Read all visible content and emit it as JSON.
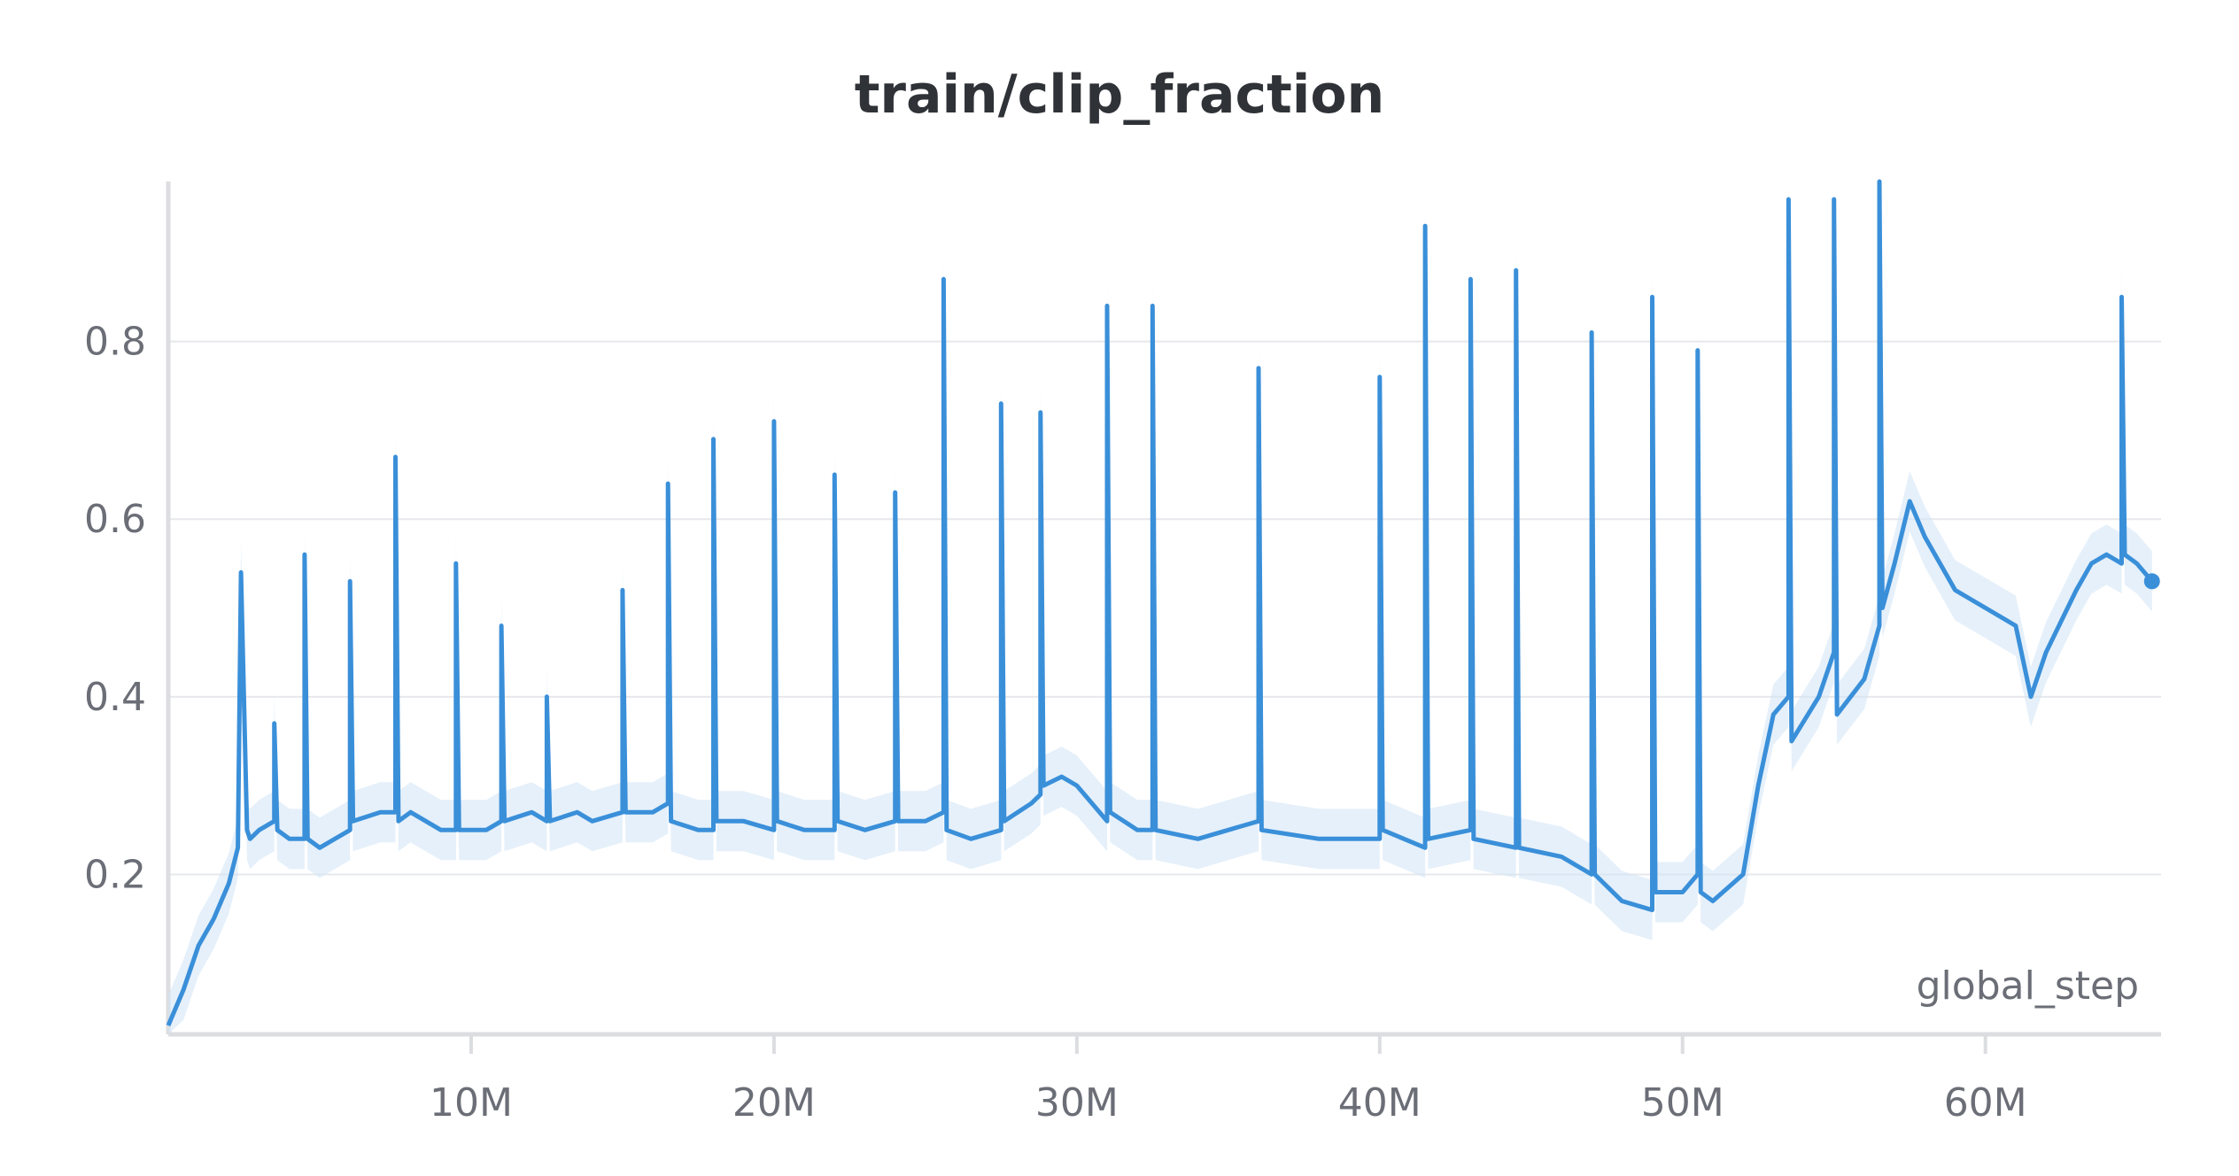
{
  "chart_data": {
    "type": "line",
    "title": "train/clip_fraction",
    "xlabel": "global_step",
    "ylabel": "",
    "xlim": [
      0,
      65800000
    ],
    "ylim": [
      0.02,
      0.98
    ],
    "x_ticks": [
      {
        "value": 10000000,
        "label": "10M"
      },
      {
        "value": 20000000,
        "label": "20M"
      },
      {
        "value": 30000000,
        "label": "30M"
      },
      {
        "value": 40000000,
        "label": "40M"
      },
      {
        "value": 50000000,
        "label": "50M"
      },
      {
        "value": 60000000,
        "label": "60M"
      }
    ],
    "y_ticks": [
      {
        "value": 0.2,
        "label": "0.2"
      },
      {
        "value": 0.4,
        "label": "0.4"
      },
      {
        "value": 0.6,
        "label": "0.6"
      },
      {
        "value": 0.8,
        "label": "0.8"
      }
    ],
    "grid": true,
    "legend": "none",
    "colors": {
      "line": "#3a8fd9",
      "band": "#cfe3f5",
      "grid": "#e6e8ec",
      "axis": "#dcdde0"
    },
    "series": [
      {
        "x": [
          0,
          500000,
          1000000,
          1500000,
          2000000,
          2300000,
          2400000,
          2600000,
          2700000,
          3000000,
          3500000,
          3500000,
          3600000,
          4000000,
          4500000,
          4500000,
          4600000,
          5000000,
          6000000,
          6000000,
          6100000,
          7000000,
          7500000,
          7500000,
          7600000,
          8000000,
          9000000,
          9500000,
          9500000,
          9600000,
          10500000,
          11000000,
          11000000,
          11100000,
          12000000,
          12500000,
          12500000,
          12600000,
          13500000,
          14000000,
          15000000,
          15000000,
          15100000,
          16000000,
          16500000,
          16500000,
          16600000,
          17500000,
          18000000,
          18000000,
          18100000,
          19000000,
          20000000,
          20000000,
          20100000,
          21000000,
          22000000,
          22000000,
          22100000,
          23000000,
          24000000,
          24000000,
          24100000,
          25000000,
          25600000,
          25600000,
          25700000,
          26500000,
          27500000,
          27500000,
          27600000,
          28500000,
          28800000,
          28800000,
          28900000,
          29500000,
          30000000,
          31000000,
          31000000,
          31100000,
          32000000,
          32500000,
          32500000,
          32600000,
          34000000,
          36000000,
          36000000,
          36100000,
          38000000,
          40000000,
          40000000,
          40100000,
          41500000,
          41500000,
          41600000,
          43000000,
          43000000,
          43100000,
          44500000,
          44500000,
          44600000,
          46000000,
          47000000,
          47000000,
          47100000,
          48000000,
          49000000,
          49000000,
          49100000,
          50000000,
          50500000,
          50500000,
          50600000,
          51000000,
          52000000,
          52500000,
          53000000,
          53500000,
          53500000,
          53600000,
          54500000,
          55000000,
          55000000,
          55100000,
          56000000,
          56500000,
          56500000,
          56600000,
          57000000,
          57500000,
          58000000,
          58500000,
          59000000,
          60000000,
          61000000,
          61500000,
          62000000,
          63000000,
          63500000,
          64000000,
          64500000,
          64500000,
          64600000,
          65000000,
          65500000
        ],
        "y": [
          0.03,
          0.07,
          0.12,
          0.15,
          0.19,
          0.23,
          0.54,
          0.25,
          0.24,
          0.25,
          0.26,
          0.37,
          0.25,
          0.24,
          0.24,
          0.56,
          0.24,
          0.23,
          0.25,
          0.53,
          0.26,
          0.27,
          0.27,
          0.67,
          0.26,
          0.27,
          0.25,
          0.25,
          0.55,
          0.25,
          0.25,
          0.26,
          0.48,
          0.26,
          0.27,
          0.26,
          0.4,
          0.26,
          0.27,
          0.26,
          0.27,
          0.52,
          0.27,
          0.27,
          0.28,
          0.64,
          0.26,
          0.25,
          0.25,
          0.69,
          0.26,
          0.26,
          0.25,
          0.71,
          0.26,
          0.25,
          0.25,
          0.65,
          0.26,
          0.25,
          0.26,
          0.63,
          0.26,
          0.26,
          0.27,
          0.87,
          0.25,
          0.24,
          0.25,
          0.73,
          0.26,
          0.28,
          0.29,
          0.72,
          0.3,
          0.31,
          0.3,
          0.26,
          0.84,
          0.27,
          0.25,
          0.25,
          0.84,
          0.25,
          0.24,
          0.26,
          0.77,
          0.25,
          0.24,
          0.24,
          0.76,
          0.25,
          0.23,
          0.93,
          0.24,
          0.25,
          0.87,
          0.24,
          0.23,
          0.88,
          0.23,
          0.22,
          0.2,
          0.81,
          0.2,
          0.17,
          0.16,
          0.85,
          0.18,
          0.18,
          0.2,
          0.79,
          0.18,
          0.17,
          0.2,
          0.3,
          0.38,
          0.4,
          0.96,
          0.35,
          0.4,
          0.45,
          0.96,
          0.38,
          0.42,
          0.48,
          0.98,
          0.5,
          0.55,
          0.62,
          0.58,
          0.55,
          0.52,
          0.5,
          0.48,
          0.4,
          0.45,
          0.52,
          0.55,
          0.56,
          0.55,
          0.85,
          0.56,
          0.55,
          0.53
        ]
      }
    ]
  }
}
